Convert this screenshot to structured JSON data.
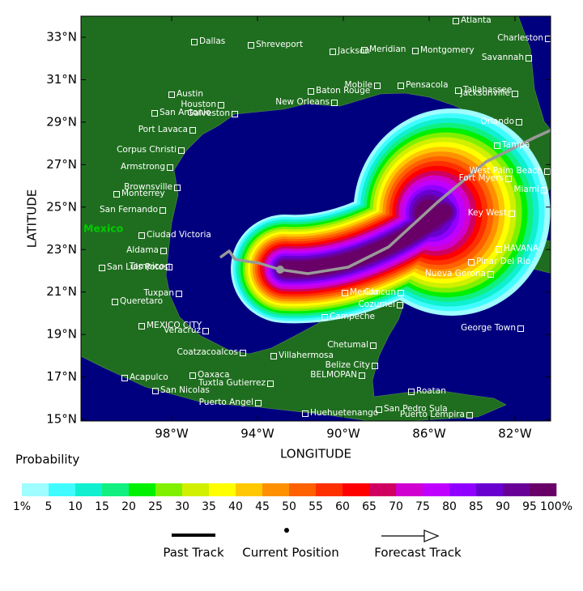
{
  "map": {
    "x_axis_label": "LONGITUDE",
    "y_axis_label": "LATITUDE",
    "lat_ticks": [
      "33°N",
      "31°N",
      "29°N",
      "27°N",
      "25°N",
      "23°N",
      "21°N",
      "19°N",
      "17°N",
      "15°N"
    ],
    "lon_ticks": [
      "98°W",
      "94°W",
      "90°W",
      "86°W",
      "82°W"
    ],
    "country_label": "Mexico",
    "cities": [
      "Atlanta",
      "Charleston",
      "Dallas",
      "Shreveport",
      "Jackson",
      "Meridian",
      "Montgomery",
      "Savannah",
      "Austin",
      "Houston",
      "San Antonio",
      "Galveston",
      "Mobile",
      "Pensacola",
      "Baton Rouge",
      "Tallahassee",
      "Jacksonville",
      "New Orleans",
      "Orlando",
      "Port Lavaca",
      "Tampa",
      "Corpus Christi",
      "Armstrong",
      "West Palm Beach",
      "Fort Myers",
      "Brownsville",
      "Miami",
      "Monterrey",
      "San Fernando",
      "Key West",
      "Ciudad Victoria",
      "Aldama",
      "HAVANA",
      "Tampico",
      "San Luis Potosi",
      "Pinar Del Rio",
      "Nueva Gerona",
      "Merida",
      "Tuxpan",
      "Cancun",
      "Queretaro",
      "Cozumel",
      "Campeche",
      "MEXICO CITY",
      "Veracruz",
      "George Town",
      "Chetumal",
      "Coatzacoalcos",
      "Villahermosa",
      "Belize City",
      "Oaxaca",
      "BELMOPAN",
      "Acapulco",
      "Tuxtla Gutierrez",
      "Roatan",
      "San Nicolas",
      "Puerto Angel",
      "San Pedro Sula",
      "Huehuetenango",
      "Puerto Lempira"
    ]
  },
  "legend": {
    "title": "Probability",
    "labels": [
      "1%",
      "5",
      "10",
      "15",
      "20",
      "25",
      "30",
      "35",
      "40",
      "45",
      "50",
      "55",
      "60",
      "65",
      "70",
      "75",
      "80",
      "85",
      "90",
      "95",
      "100%"
    ],
    "colors": [
      "#9ffcff",
      "#40fcff",
      "#10f0d0",
      "#10f080",
      "#00f000",
      "#80f000",
      "#d0f000",
      "#ffff00",
      "#ffc800",
      "#ff9000",
      "#ff6000",
      "#ff3000",
      "#ff0000",
      "#d00060",
      "#d000d0",
      "#c000ff",
      "#9000ff",
      "#6800d0",
      "#680098",
      "#680068"
    ]
  },
  "track_legend": {
    "past": "Past Track",
    "current": "Current Position",
    "forecast": "Forecast Track"
  }
}
